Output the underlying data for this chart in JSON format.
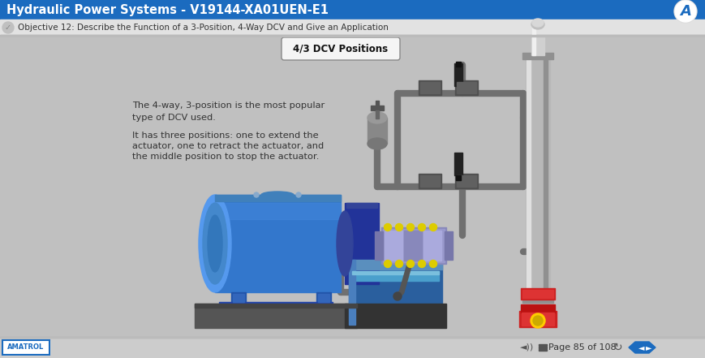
{
  "title": "Hydraulic Power Systems - V19144-XA01UEN-E1",
  "subtitle": "Objective 12: Describe the Function of a 3-Position, 4-Way DCV and Give an Application",
  "content_label": "4/3 DCV Positions",
  "text_line1": "The 4-way, 3-position is the most popular",
  "text_line2": "type of DCV used.",
  "text_line3": "It has three positions: one to extend the",
  "text_line4": "actuator, one to retract the actuator, and",
  "text_line5": "the middle position to stop the actuator.",
  "footer_text": "Page 85 of 108",
  "header_bg": "#1B6BBF",
  "header_text_color": "#FFFFFF",
  "subtitle_bg": "#E2E2E2",
  "subtitle_text_color": "#333333",
  "content_bg": "#C0C0C0",
  "footer_bg": "#CCCCCC",
  "label_bg": "#F5F5F5",
  "label_border": "#888888",
  "amatrol_blue": "#1B6BBF",
  "pipe_color": "#707070",
  "fig_width": 8.7,
  "fig_height": 4.41,
  "dpi": 100
}
